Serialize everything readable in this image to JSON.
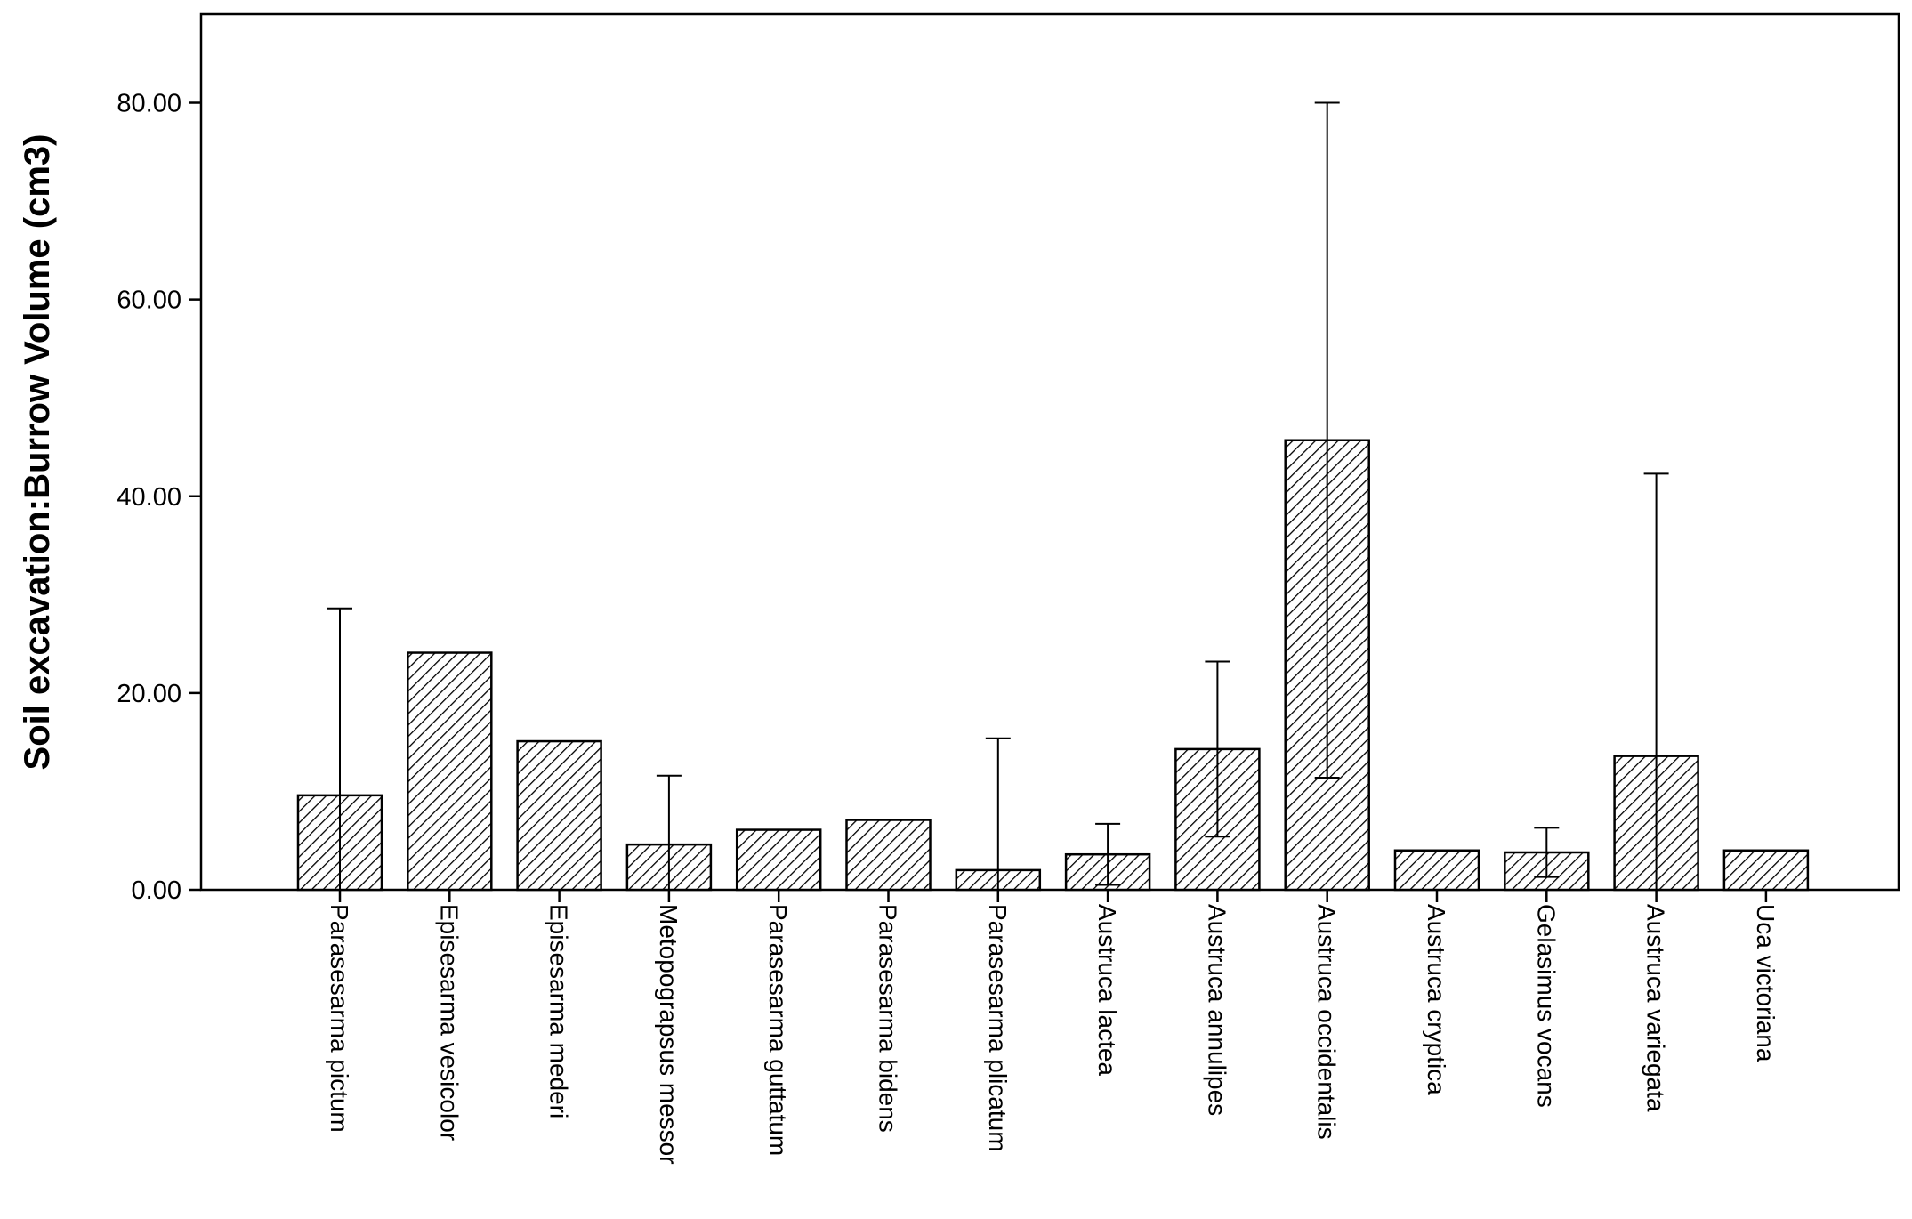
{
  "chart_data": {
    "type": "bar",
    "title": "",
    "xlabel": "",
    "ylabel": "Soil excavation:Burrow Volume (cm3)",
    "ylim": [
      0,
      89
    ],
    "yticks": [
      "0.00",
      "20.00",
      "40.00",
      "60.00",
      "80.00"
    ],
    "grid": false,
    "bar_fill": "diagonal hatch",
    "colors": {
      "bar_hatch": "#000000",
      "bar_background": "#ffffff",
      "axis": "#000000"
    },
    "categories": [
      "Parasesarma pictum",
      "Episesarma vesicolor",
      "Episesarma mederi",
      "Metopograpsus messor",
      "Parasesarma guttatum",
      "Parasesarma bidens",
      "Parasesarma plicatum",
      "Austruca lactea",
      "Austruca annulipes",
      "Austruca occidentalis",
      "Austruca cryptica",
      "Gelasimus vocans",
      "Austruca variegata",
      "Uca victoriana"
    ],
    "values": [
      9.6,
      24.1,
      15.1,
      4.6,
      6.1,
      7.1,
      2.0,
      3.6,
      14.3,
      45.7,
      4.0,
      3.8,
      13.6,
      4.0
    ],
    "error_high": [
      28.6,
      null,
      null,
      11.6,
      null,
      null,
      15.4,
      6.7,
      23.2,
      80.0,
      null,
      6.3,
      42.3,
      null
    ],
    "error_low": [
      0.0,
      null,
      null,
      0.0,
      null,
      null,
      0.0,
      0.5,
      5.4,
      11.4,
      null,
      1.3,
      0.0,
      null
    ]
  }
}
